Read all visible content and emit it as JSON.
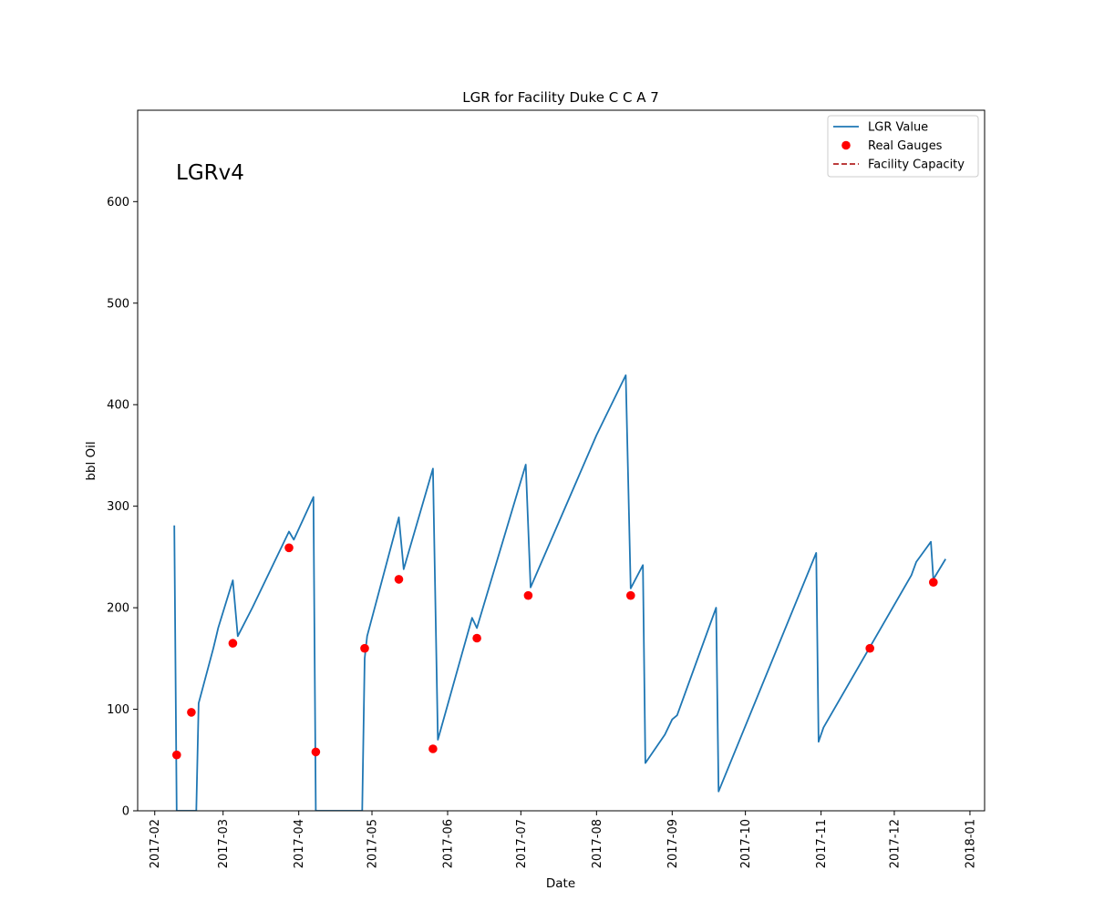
{
  "chart_data": {
    "type": "line",
    "title": "LGR for Facility Duke C C A 7",
    "xlabel": "Date",
    "ylabel": "bbl Oil",
    "annotation": "LGRv4",
    "ylim": [
      0,
      690
    ],
    "xlim": [
      "2017-01-25",
      "2018-01-07"
    ],
    "x_ticks": [
      "2017-02",
      "2017-03",
      "2017-04",
      "2017-05",
      "2017-06",
      "2017-07",
      "2017-08",
      "2017-09",
      "2017-10",
      "2017-11",
      "2017-12",
      "2018-01"
    ],
    "y_ticks": [
      0,
      100,
      200,
      300,
      400,
      500,
      600
    ],
    "grid": false,
    "legend_position": "top-right",
    "series": [
      {
        "name": "LGR Value",
        "kind": "line",
        "color": "#1f77b4",
        "points": [
          [
            "2017-02-09",
            281
          ],
          [
            "2017-02-10",
            0
          ],
          [
            "2017-02-18",
            0
          ],
          [
            "2017-02-18",
            0
          ],
          [
            "2017-02-19",
            106
          ],
          [
            "2017-02-25",
            160
          ],
          [
            "2017-02-26",
            170
          ],
          [
            "2017-02-27",
            180
          ],
          [
            "2017-03-05",
            227
          ],
          [
            "2017-03-07",
            172
          ],
          [
            "2017-03-13",
            200
          ],
          [
            "2017-03-28",
            275
          ],
          [
            "2017-03-30",
            267
          ],
          [
            "2017-04-07",
            309
          ],
          [
            "2017-04-08",
            0
          ],
          [
            "2017-04-27",
            0
          ],
          [
            "2017-04-28",
            150
          ],
          [
            "2017-04-29",
            172
          ],
          [
            "2017-05-12",
            289
          ],
          [
            "2017-05-14",
            238
          ],
          [
            "2017-05-26",
            337
          ],
          [
            "2017-05-28",
            70
          ],
          [
            "2017-06-11",
            190
          ],
          [
            "2017-06-13",
            180
          ],
          [
            "2017-07-03",
            341
          ],
          [
            "2017-07-05",
            220
          ],
          [
            "2017-08-01",
            370
          ],
          [
            "2017-08-13",
            429
          ],
          [
            "2017-08-15",
            219
          ],
          [
            "2017-08-20",
            242
          ],
          [
            "2017-08-21",
            47
          ],
          [
            "2017-08-29",
            75
          ],
          [
            "2017-09-01",
            90
          ],
          [
            "2017-09-03",
            94
          ],
          [
            "2017-09-19",
            200
          ],
          [
            "2017-09-20",
            19
          ],
          [
            "2017-10-30",
            254
          ],
          [
            "2017-10-31",
            68
          ],
          [
            "2017-11-02",
            82
          ],
          [
            "2017-12-08",
            232
          ],
          [
            "2017-12-10",
            245
          ],
          [
            "2017-12-16",
            265
          ],
          [
            "2017-12-17",
            228
          ],
          [
            "2017-12-22",
            248
          ]
        ]
      },
      {
        "name": "Real Gauges",
        "kind": "scatter",
        "color": "#ff0000",
        "points": [
          [
            "2017-02-10",
            55
          ],
          [
            "2017-02-16",
            97
          ],
          [
            "2017-03-05",
            165
          ],
          [
            "2017-03-28",
            259
          ],
          [
            "2017-04-08",
            58
          ],
          [
            "2017-04-28",
            160
          ],
          [
            "2017-05-12",
            228
          ],
          [
            "2017-05-26",
            61
          ],
          [
            "2017-06-13",
            170
          ],
          [
            "2017-07-04",
            212
          ],
          [
            "2017-08-15",
            212
          ],
          [
            "2017-11-21",
            160
          ],
          [
            "2017-12-17",
            225
          ]
        ]
      },
      {
        "name": "Facility Capacity",
        "kind": "dashed-line",
        "color": "#b22222",
        "points": []
      }
    ]
  }
}
